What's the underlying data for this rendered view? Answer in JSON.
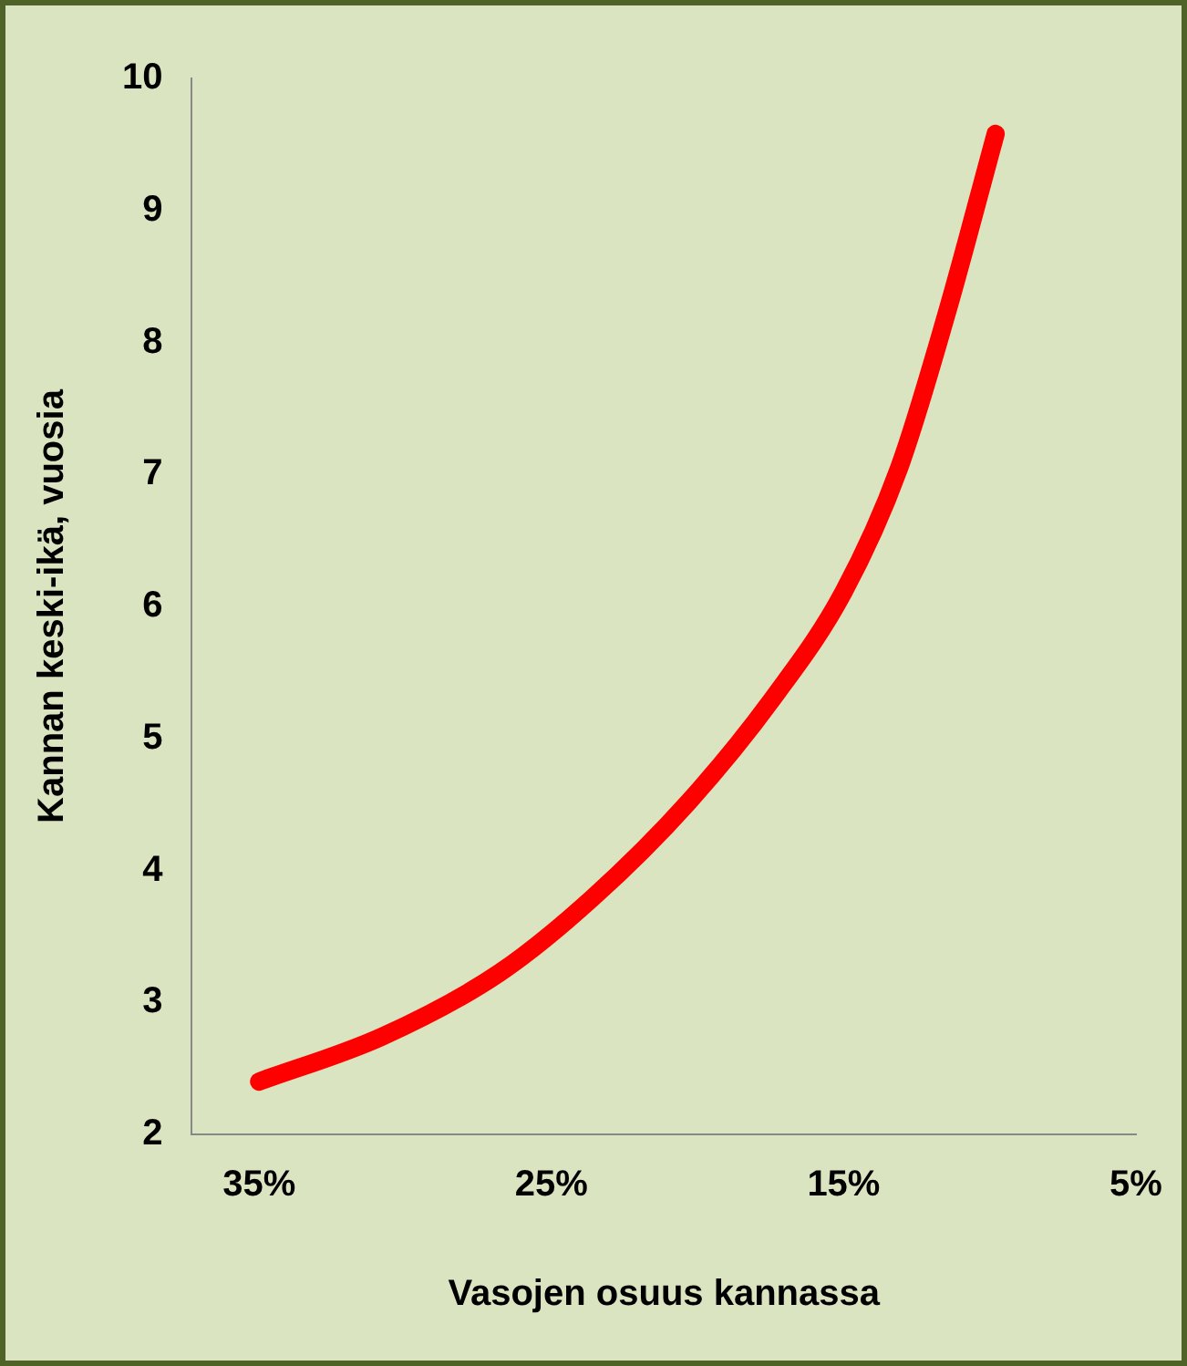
{
  "chart_data": {
    "type": "line",
    "xlabel": "Vasojen osuus kannassa",
    "ylabel": "Kannan keski-ikä, vuosia",
    "x": [
      35,
      30.8,
      26.8,
      23.6,
      20.3,
      17.4,
      15,
      13.1,
      11.5,
      9.8
    ],
    "series": [
      {
        "color": "#ff0000",
        "values": [
          2.4,
          2.74,
          3.22,
          3.79,
          4.52,
          5.31,
          6.11,
          7.05,
          8.2,
          9.58
        ]
      }
    ],
    "xlim": [
      37.3,
      5
    ],
    "xticks": [
      {
        "value": 35,
        "label": "35%"
      },
      {
        "value": 25,
        "label": "25%"
      },
      {
        "value": 15,
        "label": "15%"
      },
      {
        "value": 5,
        "label": "5%"
      }
    ],
    "ylim": [
      2,
      10
    ],
    "yticks": [
      2,
      3,
      4,
      5,
      6,
      7,
      8,
      9,
      10
    ],
    "grid": false,
    "legend": false,
    "marker": "none",
    "line_style": "solid"
  }
}
